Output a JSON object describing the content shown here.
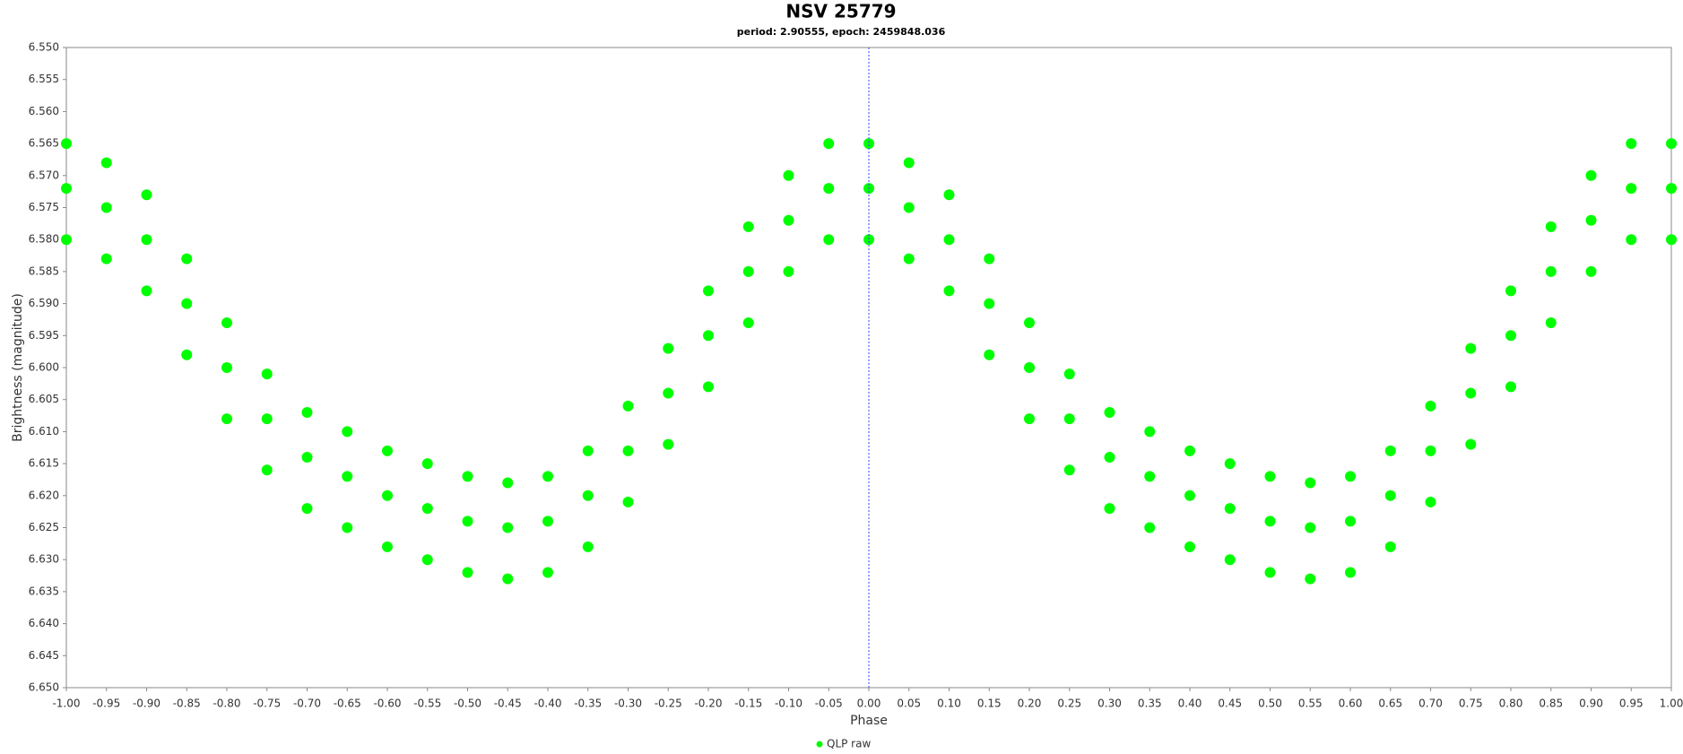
{
  "chart_data": {
    "type": "scatter",
    "title": "NSV 25779",
    "subtitle": "period: 2.90555, epoch: 2459848.036",
    "x_label": "Phase",
    "y_label": "Brightness (magnitude)",
    "xlim": [
      -1.0,
      1.0
    ],
    "ylim": [
      6.55,
      6.65
    ],
    "y_inverted": true,
    "zero_line": true,
    "xticks": [
      {
        "value": -1.0,
        "label": "-1.00"
      },
      {
        "value": -0.95,
        "label": "-0.95"
      },
      {
        "value": -0.9,
        "label": "-0.90"
      },
      {
        "value": -0.85,
        "label": "-0.85"
      },
      {
        "value": -0.8,
        "label": "-0.80"
      },
      {
        "value": -0.75,
        "label": "-0.75"
      },
      {
        "value": -0.7,
        "label": "-0.70"
      },
      {
        "value": -0.65,
        "label": "-0.65"
      },
      {
        "value": -0.6,
        "label": "-0.60"
      },
      {
        "value": -0.55,
        "label": "-0.55"
      },
      {
        "value": -0.5,
        "label": "-0.50"
      },
      {
        "value": -0.45,
        "label": "-0.45"
      },
      {
        "value": -0.4,
        "label": "-0.40"
      },
      {
        "value": -0.35,
        "label": "-0.35"
      },
      {
        "value": -0.3,
        "label": "-0.30"
      },
      {
        "value": -0.25,
        "label": "-0.25"
      },
      {
        "value": -0.2,
        "label": "-0.20"
      },
      {
        "value": -0.15,
        "label": "-0.15"
      },
      {
        "value": -0.1,
        "label": "-0.10"
      },
      {
        "value": -0.05,
        "label": "-0.05"
      },
      {
        "value": 0,
        "label": "0.00"
      },
      {
        "value": 0.05,
        "label": "0.05"
      },
      {
        "value": 0.1,
        "label": "0.10"
      },
      {
        "value": 0.15,
        "label": "0.15"
      },
      {
        "value": 0.2,
        "label": "0.20"
      },
      {
        "value": 0.25,
        "label": "0.25"
      },
      {
        "value": 0.3,
        "label": "0.30"
      },
      {
        "value": 0.35,
        "label": "0.35"
      },
      {
        "value": 0.4,
        "label": "0.40"
      },
      {
        "value": 0.45,
        "label": "0.45"
      },
      {
        "value": 0.5,
        "label": "0.50"
      },
      {
        "value": 0.55,
        "label": "0.55"
      },
      {
        "value": 0.6,
        "label": "0.60"
      },
      {
        "value": 0.65,
        "label": "0.65"
      },
      {
        "value": 0.7,
        "label": "0.70"
      },
      {
        "value": 0.75,
        "label": "0.75"
      },
      {
        "value": 0.8,
        "label": "0.80"
      },
      {
        "value": 0.85,
        "label": "0.85"
      },
      {
        "value": 0.9,
        "label": "0.90"
      },
      {
        "value": 0.95,
        "label": "0.95"
      },
      {
        "value": 1.0,
        "label": "1.00"
      }
    ],
    "yticks": [
      {
        "value": 6.55,
        "label": "6.550"
      },
      {
        "value": 6.555,
        "label": "6.555"
      },
      {
        "value": 6.56,
        "label": "6.560"
      },
      {
        "value": 6.565,
        "label": "6.565"
      },
      {
        "value": 6.57,
        "label": "6.570"
      },
      {
        "value": 6.575,
        "label": "6.575"
      },
      {
        "value": 6.58,
        "label": "6.580"
      },
      {
        "value": 6.585,
        "label": "6.585"
      },
      {
        "value": 6.59,
        "label": "6.590"
      },
      {
        "value": 6.595,
        "label": "6.595"
      },
      {
        "value": 6.6,
        "label": "6.600"
      },
      {
        "value": 6.605,
        "label": "6.605"
      },
      {
        "value": 6.61,
        "label": "6.610"
      },
      {
        "value": 6.615,
        "label": "6.615"
      },
      {
        "value": 6.62,
        "label": "6.620"
      },
      {
        "value": 6.625,
        "label": "6.625"
      },
      {
        "value": 6.63,
        "label": "6.630"
      },
      {
        "value": 6.635,
        "label": "6.635"
      },
      {
        "value": 6.64,
        "label": "6.640"
      },
      {
        "value": 6.645,
        "label": "6.645"
      },
      {
        "value": 6.65,
        "label": "6.650"
      }
    ],
    "series": [
      {
        "name": "QLP raw",
        "color": "#00ff00",
        "x": [
          -1.0,
          -0.95,
          -0.9,
          -0.85,
          -0.8,
          -0.75,
          -0.7,
          -0.65,
          -0.6,
          -0.55,
          -0.5,
          -0.45,
          -0.4,
          -0.35,
          -0.3,
          -0.25,
          -0.2,
          -0.15,
          -0.1,
          -0.05,
          0,
          0.05,
          0.1,
          0.15,
          0.2,
          0.25,
          0.3,
          0.35,
          0.4,
          0.45,
          0.5,
          0.55,
          0.6,
          0.65,
          0.7,
          0.75,
          0.8,
          0.85,
          0.9,
          0.95,
          1.0,
          -1.0,
          -0.95,
          -0.9,
          -0.85,
          -0.8,
          -0.75,
          -0.7,
          -0.65,
          -0.6,
          -0.55,
          -0.5,
          -0.45,
          -0.4,
          -0.35,
          -0.3,
          -0.25,
          -0.2,
          -0.15,
          -0.1,
          -0.05,
          0,
          0.05,
          0.1,
          0.15,
          0.2,
          0.25,
          0.3,
          0.35,
          0.4,
          0.45,
          0.5,
          0.55,
          0.6,
          0.65,
          0.7,
          0.75,
          0.8,
          0.85,
          0.9,
          0.95,
          1.0,
          -1.0,
          -0.95,
          -0.9,
          -0.85,
          -0.8,
          -0.75,
          -0.7,
          -0.65,
          -0.6,
          -0.55,
          -0.5,
          -0.45,
          -0.4,
          -0.35,
          -0.3,
          -0.25,
          -0.2,
          -0.15,
          -0.1,
          -0.05,
          0,
          0.05,
          0.1,
          0.15,
          0.2,
          0.25,
          0.3,
          0.35,
          0.4,
          0.45,
          0.5,
          0.55,
          0.6,
          0.65,
          0.7,
          0.75,
          0.8,
          0.85,
          0.9,
          0.95,
          1.0
        ],
        "values": [
          6.572,
          6.575,
          6.58,
          6.59,
          6.6,
          6.608,
          6.614,
          6.617,
          6.62,
          6.622,
          6.624,
          6.625,
          6.624,
          6.62,
          6.613,
          6.604,
          6.595,
          6.585,
          6.577,
          6.572,
          6.572,
          6.575,
          6.58,
          6.59,
          6.6,
          6.608,
          6.614,
          6.617,
          6.62,
          6.622,
          6.624,
          6.625,
          6.624,
          6.62,
          6.613,
          6.604,
          6.595,
          6.585,
          6.577,
          6.572,
          6.572,
          6.565,
          6.568,
          6.573,
          6.583,
          6.593,
          6.601,
          6.607,
          6.61,
          6.613,
          6.615,
          6.617,
          6.618,
          6.617,
          6.613,
          6.606,
          6.597,
          6.588,
          6.578,
          6.57,
          6.565,
          6.565,
          6.568,
          6.573,
          6.583,
          6.593,
          6.601,
          6.607,
          6.61,
          6.613,
          6.615,
          6.617,
          6.618,
          6.617,
          6.613,
          6.606,
          6.597,
          6.588,
          6.578,
          6.57,
          6.565,
          6.565,
          6.58,
          6.583,
          6.588,
          6.598,
          6.608,
          6.616,
          6.622,
          6.625,
          6.628,
          6.63,
          6.632,
          6.633,
          6.632,
          6.628,
          6.621,
          6.612,
          6.603,
          6.593,
          6.585,
          6.58,
          6.58,
          6.583,
          6.588,
          6.598,
          6.608,
          6.616,
          6.622,
          6.625,
          6.628,
          6.63,
          6.632,
          6.633,
          6.632,
          6.628,
          6.621,
          6.612,
          6.603,
          6.593,
          6.585,
          6.58,
          6.58
        ]
      }
    ]
  }
}
